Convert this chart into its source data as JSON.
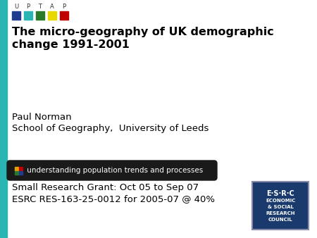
{
  "bg_color": "#ffffff",
  "left_bar_color": "#2ab5b5",
  "title_line1": "The micro-geography of UK demographic",
  "title_line2": "change 1991-2001",
  "author": "Paul Norman",
  "affiliation": "School of Geography,  University of Leeds",
  "banner_text": " understanding population trends and processes",
  "grant_line1": "Small Research Grant: Oct 05 to Sep 07",
  "grant_line2": "ESRC RES-163-25-0012 for 2005-07 @ 40%",
  "uptap_colors": [
    "#1f3c8f",
    "#2ab5b5",
    "#2a7a2a",
    "#e8d800",
    "#c00000"
  ],
  "uptap_letters": [
    "U",
    "P",
    "T",
    "A",
    "P"
  ],
  "esrc_bg": "#1a3a6e",
  "banner_bg": "#1a1a1a",
  "banner_text_color": "#ffffff",
  "title_fontsize": 11.5,
  "body_fontsize": 9.5,
  "banner_fontsize": 7.5,
  "grant_fontsize": 9.5,
  "uptap_fontsize": 6.0
}
